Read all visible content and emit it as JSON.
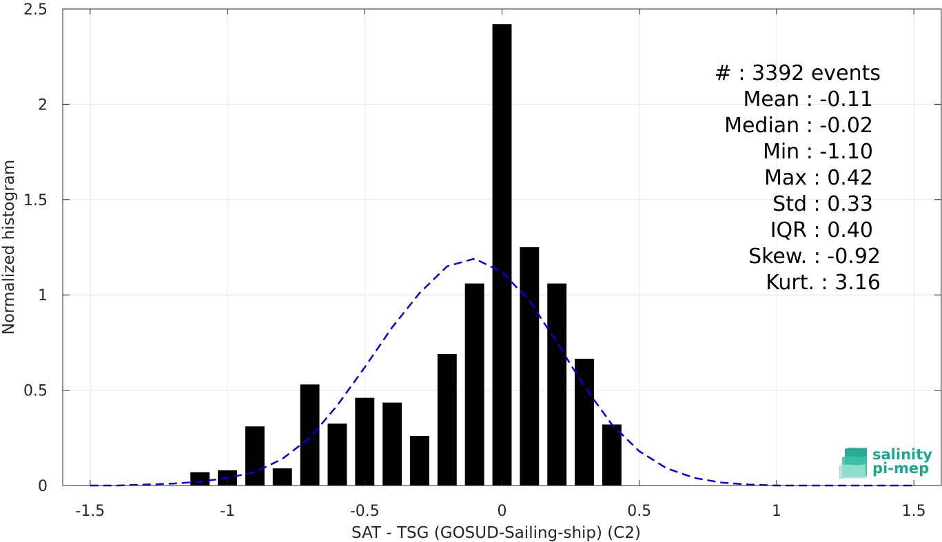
{
  "chart_data": {
    "type": "bar",
    "xlabel": "SAT - TSG (GOSUD-Sailing-ship) (C2)",
    "ylabel": "Normalized histogram",
    "xlim": [
      -1.6,
      1.6
    ],
    "ylim": [
      0,
      2.5
    ],
    "xticks": [
      -1.5,
      -1,
      -0.5,
      0,
      0.5,
      1,
      1.5
    ],
    "xtick_labels": [
      "-1.5",
      "-1",
      "-0.5",
      "0",
      "0.5",
      "1",
      "1.5"
    ],
    "yticks": [
      0,
      0.5,
      1,
      1.5,
      2,
      2.5
    ],
    "ytick_labels": [
      "0",
      "0.5",
      "1",
      "1.5",
      "2",
      "2.5"
    ],
    "grid": true,
    "bar_width": 0.07,
    "bar_color": "#000000",
    "bars": [
      {
        "x": -1.1,
        "y": 0.07
      },
      {
        "x": -1.0,
        "y": 0.08
      },
      {
        "x": -0.9,
        "y": 0.31
      },
      {
        "x": -0.8,
        "y": 0.09
      },
      {
        "x": -0.7,
        "y": 0.53
      },
      {
        "x": -0.6,
        "y": 0.325
      },
      {
        "x": -0.5,
        "y": 0.46
      },
      {
        "x": -0.4,
        "y": 0.435
      },
      {
        "x": -0.3,
        "y": 0.26
      },
      {
        "x": -0.2,
        "y": 0.69
      },
      {
        "x": -0.1,
        "y": 1.06
      },
      {
        "x": 0.0,
        "y": 2.42
      },
      {
        "x": 0.1,
        "y": 1.25
      },
      {
        "x": 0.2,
        "y": 1.06
      },
      {
        "x": 0.3,
        "y": 0.665
      },
      {
        "x": 0.4,
        "y": 0.32
      }
    ],
    "fit_curve": {
      "style": "dashed",
      "color": "#0000ee",
      "x": [
        -1.5,
        -1.4,
        -1.3,
        -1.2,
        -1.1,
        -1.0,
        -0.9,
        -0.8,
        -0.7,
        -0.6,
        -0.5,
        -0.4,
        -0.3,
        -0.2,
        -0.1,
        0.0,
        0.1,
        0.2,
        0.3,
        0.4,
        0.5,
        0.6,
        0.7,
        0.8,
        0.9,
        1.0,
        1.1,
        1.2,
        1.3,
        1.4,
        1.5
      ],
      "y": [
        0.0,
        0.0,
        0.005,
        0.01,
        0.02,
        0.04,
        0.07,
        0.14,
        0.25,
        0.42,
        0.62,
        0.83,
        1.01,
        1.15,
        1.19,
        1.12,
        0.97,
        0.75,
        0.52,
        0.32,
        0.18,
        0.09,
        0.04,
        0.015,
        0.005,
        0.0,
        0.0,
        0.0,
        0.0,
        0.0,
        0.0
      ]
    }
  },
  "stats": [
    {
      "label": "#  : 3392 events"
    },
    {
      "label": "Mean : -0.11"
    },
    {
      "label": "Median : -0.02"
    },
    {
      "label": "Min : -1.10"
    },
    {
      "label": "Max : 0.42"
    },
    {
      "label": "Std : 0.33"
    },
    {
      "label": "IQR : 0.40"
    },
    {
      "label": "Skew. : -0.92"
    },
    {
      "label": "Kurt. : 3.16"
    }
  ],
  "logo": {
    "line1": "salinity",
    "line2": "pi-mep",
    "color": "#1aa88f",
    "icon": "salinity-waves-icon"
  }
}
